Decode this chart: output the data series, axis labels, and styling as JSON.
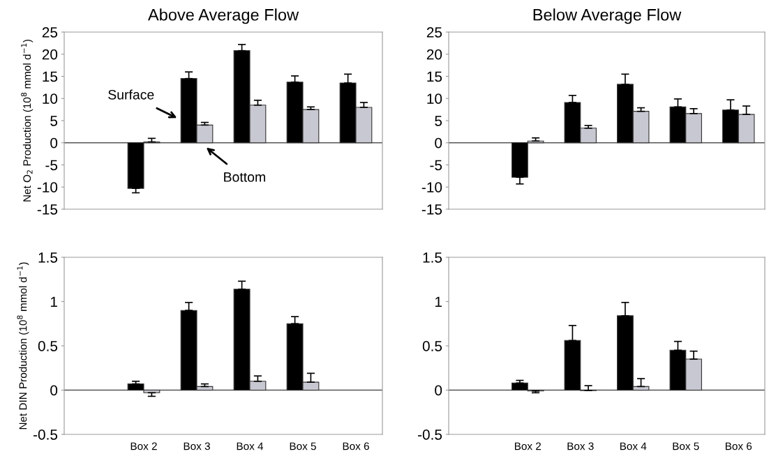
{
  "chart_data": [
    {
      "type": "bar",
      "title": "Above Average Flow",
      "ylabel": "Net O$_{2}$ Production (10$^{8}$ mmol d$^{−1}$)",
      "categories": [
        null,
        "Box 2",
        "Box 3",
        "Box 4",
        "Box 5",
        "Box 6"
      ],
      "ylim": [
        -15,
        25
      ],
      "yticks": [
        -15,
        -10,
        -5,
        0,
        5,
        10,
        15,
        20,
        25
      ],
      "tick_labels": "y",
      "series": [
        {
          "color": "#000000",
          "values": [
            null,
            -10.3,
            14.5,
            20.8,
            13.7,
            13.5
          ],
          "errors": [
            null,
            [
              -11.3,
              -10.3
            ],
            [
              14.5,
              16
            ],
            [
              20.8,
              22.2
            ],
            [
              13.7,
              15.1
            ],
            [
              13.5,
              15.5
            ]
          ]
        },
        {
          "color": "#c8c8d2",
          "values": [
            null,
            0.2,
            4,
            8.5,
            7.5,
            8
          ],
          "errors": [
            null,
            [
              0.2,
              1
            ],
            [
              4,
              4.6
            ],
            [
              8.5,
              9.6
            ],
            [
              7.5,
              8.1
            ],
            [
              8,
              9.1
            ]
          ]
        }
      ],
      "annotations": [
        "Surface",
        {
          "text": "Bottom",
          "x": "Box 3",
          "y": 0
        }
      ]
    },
    {
      "type": "bar",
      "title": "Below Average Flow",
      "categories": [
        null,
        "Box 2",
        "Box 3",
        "Box 4",
        "Box 5",
        "Box 6"
      ],
      "ylim": [
        -15,
        25
      ],
      "yticks": [
        -15,
        -10,
        -5,
        0,
        5,
        10,
        15,
        20,
        25
      ],
      "tick_labels": "y",
      "series": [
        {
          "color": "#000000",
          "values": [
            null,
            -7.8,
            9.1,
            13.2,
            8.1,
            7.4
          ],
          "errors": [
            null,
            [
              -9.3,
              -7.8
            ],
            [
              9.1,
              10.7
            ],
            [
              13.2,
              15.5
            ],
            [
              8.1,
              9.9
            ],
            [
              7.4,
              9.7
            ]
          ]
        },
        {
          "color": "#c8c8d2",
          "values": [
            null,
            0.4,
            3.3,
            7.1,
            6.6,
            6.4
          ],
          "errors": [
            null,
            [
              0.4,
              1.1
            ],
            [
              3.3,
              3.9
            ],
            [
              7.1,
              7.9
            ],
            [
              6.6,
              7.7
            ],
            [
              6.4,
              8.3
            ]
          ]
        }
      ]
    },
    {
      "type": "bar",
      "ylabel": "Net DIN Production (10$^{8}$ mmol d$^{−1}$)",
      "categories": [
        null,
        "Box 2",
        "Box 3",
        "Box 4",
        "Box 5",
        "Box 6"
      ],
      "ylim": [
        -0.5,
        1.5
      ],
      "yticks": [
        {
          "value": -0.5,
          "label": "-0.5"
        },
        0,
        0.5,
        1,
        1.5
      ],
      "series": [
        {
          "color": "#000000",
          "values": [
            null,
            0.07,
            0.9,
            1.14,
            0.75,
            null
          ],
          "errors": [
            null,
            [
              0.07,
              0.1
            ],
            [
              0.9,
              0.99
            ],
            [
              1.14,
              1.23
            ],
            [
              0.75,
              0.83
            ],
            null
          ]
        },
        {
          "color": "#c8c8d2",
          "values": [
            null,
            -0.03,
            0.04,
            0.1,
            0.09,
            null
          ],
          "errors": [
            null,
            [
              -0.07,
              -0.03
            ],
            [
              0.04,
              0.07
            ],
            [
              0.1,
              0.16
            ],
            [
              0.09,
              0.19
            ],
            null
          ]
        }
      ]
    },
    {
      "type": "bar",
      "categories": [
        null,
        "Box 2",
        "Box 3",
        "Box 4",
        "Box 5",
        "Box 6"
      ],
      "ylim": [
        -0.5,
        1.5
      ],
      "yticks": [
        {
          "value": -0.5,
          "label": "-0.5"
        },
        0,
        0.5,
        1,
        1.5
      ],
      "series": [
        {
          "color": "#000000",
          "values": [
            null,
            0.08,
            0.56,
            0.84,
            0.45,
            null
          ],
          "errors": [
            null,
            [
              0.08,
              0.11
            ],
            [
              0.56,
              0.73
            ],
            [
              0.84,
              0.99
            ],
            [
              0.45,
              0.55
            ],
            null
          ]
        },
        {
          "color": "#c8c8d2",
          "values": [
            null,
            -0.01,
            -0.005,
            0.04,
            0.35,
            null
          ],
          "errors": [
            null,
            [
              -0.03,
              -0.01
            ],
            [
              -0.005,
              0.05
            ],
            [
              0.04,
              0.13
            ],
            [
              0.35,
              0.44
            ],
            null
          ]
        }
      ]
    }
  ]
}
